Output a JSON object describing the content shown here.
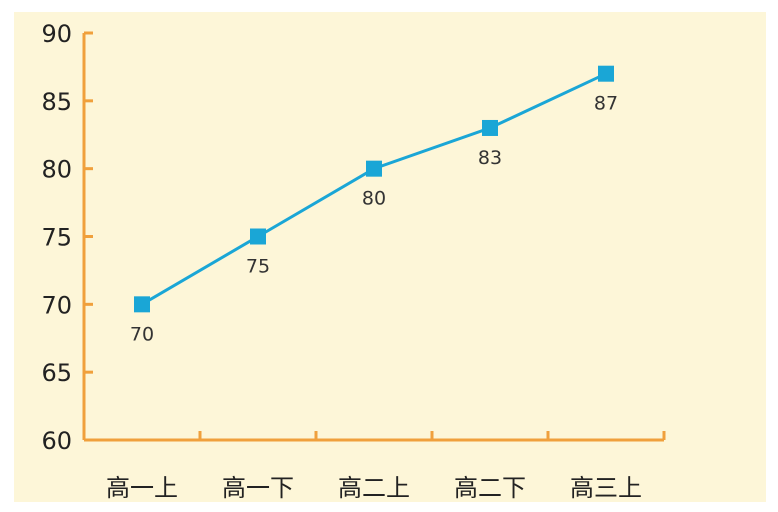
{
  "chart_data": {
    "type": "line",
    "categories": [
      "高一上",
      "高一下",
      "高二上",
      "高二下",
      "高三上"
    ],
    "series": [
      {
        "values": [
          70,
          75,
          80,
          83,
          87
        ]
      }
    ],
    "y_ticks": [
      "60",
      "65",
      "70",
      "75",
      "80",
      "85",
      "90"
    ],
    "ylim": [
      60,
      90
    ],
    "data_labels": [
      "70",
      "75",
      "80",
      "83",
      "87"
    ],
    "title": "",
    "xlabel": "",
    "ylabel": "",
    "grid": false,
    "colors": {
      "background": "#fdf6d8",
      "axis": "#f0a03c",
      "line": "#1aa6d6",
      "marker": "#1aa6d6",
      "tick_label": "#222222",
      "data_label": "#333333"
    }
  }
}
